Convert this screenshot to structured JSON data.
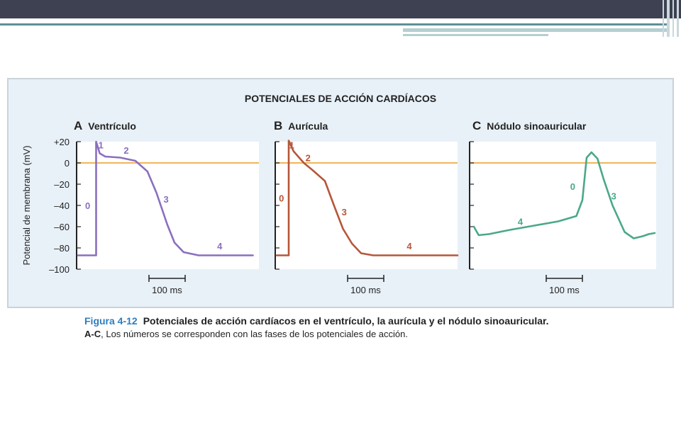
{
  "colors": {
    "ventricle": "#8a6fbf",
    "atrium": "#b5573a",
    "sinoatrial": "#4aa888",
    "zero_line": "#f0b55a",
    "panel_bg": "#e8f1f8",
    "caption_number": "#2e7dbf"
  },
  "caption": {
    "number": "Figura 4-12",
    "title": "Potenciales de acción cardíacos en el ventrículo, la aurícula y el nódulo sinoauricular.",
    "sub_bold": "A-C",
    "sub_text": ", Los números se corresponden con las fases de los potenciales de acción."
  },
  "chart_data": {
    "type": "line",
    "title": "POTENCIALES DE ACCIÓN CARDÍACOS",
    "ylabel": "Potencial de membrana (mV)",
    "ylim": [
      -100,
      20
    ],
    "yticks": [
      "+20",
      "0",
      "–20",
      "–40",
      "–60",
      "–80",
      "–100"
    ],
    "ytick_values": [
      20,
      0,
      -20,
      -40,
      -60,
      -80,
      -100
    ],
    "reference_line_mV": 0,
    "scale_bar": "100 ms",
    "panels": [
      {
        "letter": "A",
        "name": "Ventrículo",
        "x_unit": "ms",
        "series": {
          "x": [
            0,
            30,
            30,
            36,
            45,
            70,
            95,
            115,
            130,
            148,
            160,
            175,
            200,
            230,
            260,
            290
          ],
          "y": [
            -87,
            -87,
            20,
            9,
            6,
            5,
            2,
            -8,
            -28,
            -58,
            -75,
            -84,
            -87,
            -87,
            -87,
            -87
          ]
        },
        "phase_labels": [
          {
            "text": "0",
            "x": 16,
            "y": -40
          },
          {
            "text": "1",
            "x": 38,
            "y": 17
          },
          {
            "text": "2",
            "x": 80,
            "y": 12
          },
          {
            "text": "3",
            "x": 146,
            "y": -34
          },
          {
            "text": "4",
            "x": 235,
            "y": -78
          }
        ]
      },
      {
        "letter": "B",
        "name": "Aurícula",
        "x_unit": "ms",
        "series": {
          "x": [
            0,
            20,
            20,
            28,
            45,
            60,
            80,
            95,
            110,
            125,
            140,
            160,
            200,
            260,
            300
          ],
          "y": [
            -87,
            -87,
            21,
            11,
            0,
            -7,
            -17,
            -40,
            -62,
            -76,
            -85,
            -87,
            -87,
            -87,
            -87
          ]
        },
        "phase_labels": [
          {
            "text": "0",
            "x": 8,
            "y": -33
          },
          {
            "text": "1",
            "x": 25,
            "y": 17
          },
          {
            "text": "2",
            "x": 52,
            "y": 5
          },
          {
            "text": "3",
            "x": 112,
            "y": -46
          },
          {
            "text": "4",
            "x": 220,
            "y": -78
          }
        ]
      },
      {
        "letter": "C",
        "name": "Nódulo sinoauricular",
        "x_unit": "ms",
        "series": {
          "x": [
            0,
            8,
            25,
            60,
            100,
            140,
            170,
            180,
            187,
            195,
            205,
            215,
            230,
            250,
            265,
            280,
            290,
            300
          ],
          "y": [
            -60,
            -68,
            -67,
            -63,
            -59,
            -55,
            -50,
            -35,
            5,
            10,
            4,
            -15,
            -40,
            -65,
            -71,
            -69,
            -67,
            -66
          ]
        },
        "phase_labels": [
          {
            "text": "0",
            "x": 164,
            "y": -22
          },
          {
            "text": "4",
            "x": 77,
            "y": -55
          },
          {
            "text": "3",
            "x": 232,
            "y": -31
          }
        ]
      }
    ]
  }
}
